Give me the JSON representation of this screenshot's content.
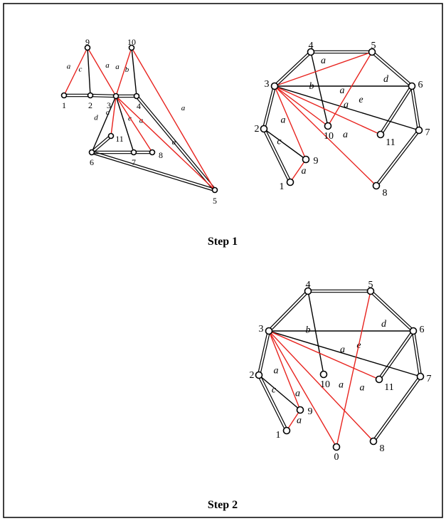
{
  "step_labels": {
    "step1": "Step 1",
    "step2": "Step 2"
  },
  "graphs": [
    {
      "id": "g1",
      "label_size": "small",
      "vertices": [
        {
          "id": "9",
          "lx": 0,
          "ly": -8
        },
        {
          "id": "10",
          "lx": 0,
          "ly": -8
        },
        {
          "id": "1",
          "lx": 0,
          "ly": 14
        },
        {
          "id": "2",
          "lx": 0,
          "ly": 14
        },
        {
          "id": "3",
          "lx": -10,
          "ly": 13
        },
        {
          "id": "4",
          "lx": 3,
          "ly": 14
        },
        {
          "id": "11",
          "lx": 12,
          "ly": 4
        },
        {
          "id": "6",
          "lx": 0,
          "ly": 14
        },
        {
          "id": "7",
          "lx": 0,
          "ly": 14
        },
        {
          "id": "8",
          "lx": 12,
          "ly": 4
        },
        {
          "id": "5",
          "lx": 0,
          "ly": 15
        }
      ],
      "edges": [
        {
          "from": "1",
          "to": "2",
          "style": "double",
          "label": ""
        },
        {
          "from": "2",
          "to": "3",
          "style": "double",
          "label": ""
        },
        {
          "from": "3",
          "to": "4",
          "style": "double",
          "label": ""
        },
        {
          "from": "4",
          "to": "5",
          "style": "double",
          "label": ""
        },
        {
          "from": "5",
          "to": "6",
          "style": "double",
          "label": ""
        },
        {
          "from": "6",
          "to": "11",
          "style": "double",
          "label": ""
        },
        {
          "from": "6",
          "to": "7",
          "style": "double",
          "label": ""
        },
        {
          "from": "7",
          "to": "8",
          "style": "double",
          "label": ""
        },
        {
          "from": "9",
          "to": "2",
          "style": "single",
          "label": "c"
        },
        {
          "from": "10",
          "to": "4",
          "style": "single",
          "label": "b"
        },
        {
          "from": "3",
          "to": "6",
          "style": "single",
          "label": "d"
        },
        {
          "from": "3",
          "to": "7",
          "style": "single",
          "label": "e"
        },
        {
          "from": "9",
          "to": "1",
          "style": "red",
          "label": "a"
        },
        {
          "from": "9",
          "to": "3",
          "style": "red",
          "label": "a"
        },
        {
          "from": "10",
          "to": "3",
          "style": "red",
          "label": "a"
        },
        {
          "from": "10",
          "to": "5",
          "style": "red",
          "label": "a"
        },
        {
          "from": "3",
          "to": "11",
          "style": "red",
          "label": "a"
        },
        {
          "from": "3",
          "to": "8",
          "style": "red",
          "label": "a"
        },
        {
          "from": "3",
          "to": "5",
          "style": "red",
          "label": "a"
        }
      ]
    },
    {
      "id": "g2",
      "label_size": "normal",
      "vertices": [
        {
          "id": "4",
          "lx": 0,
          "ly": -9
        },
        {
          "id": "5",
          "lx": 2,
          "ly": -9
        },
        {
          "id": "3",
          "lx": -11,
          "ly": -3
        },
        {
          "id": "6",
          "lx": 12,
          "ly": -2
        },
        {
          "id": "2",
          "lx": -10,
          "ly": 0
        },
        {
          "id": "7",
          "lx": 12,
          "ly": 3
        },
        {
          "id": "10",
          "lx": 1,
          "ly": 14
        },
        {
          "id": "11",
          "lx": 14,
          "ly": 11
        },
        {
          "id": "9",
          "lx": 14,
          "ly": 2
        },
        {
          "id": "1",
          "lx": -12,
          "ly": 6
        },
        {
          "id": "8",
          "lx": 12,
          "ly": 10
        }
      ],
      "edges": [
        {
          "from": "3",
          "to": "4",
          "style": "double",
          "label": ""
        },
        {
          "from": "4",
          "to": "5",
          "style": "double",
          "label": ""
        },
        {
          "from": "5",
          "to": "6",
          "style": "double",
          "label": ""
        },
        {
          "from": "6",
          "to": "7",
          "style": "double",
          "label": ""
        },
        {
          "from": "7",
          "to": "8",
          "style": "double",
          "label": ""
        },
        {
          "from": "6",
          "to": "11",
          "style": "double",
          "label": ""
        },
        {
          "from": "3",
          "to": "2",
          "style": "double",
          "label": ""
        },
        {
          "from": "2",
          "to": "1",
          "style": "double",
          "label": ""
        },
        {
          "from": "2",
          "to": "9",
          "style": "single",
          "label": "c"
        },
        {
          "from": "4",
          "to": "10",
          "style": "single",
          "label": "b"
        },
        {
          "from": "3",
          "to": "6",
          "style": "single",
          "label": "d"
        },
        {
          "from": "3",
          "to": "7",
          "style": "single",
          "label": "e"
        },
        {
          "from": "3",
          "to": "5",
          "style": "red",
          "label": "a"
        },
        {
          "from": "10",
          "to": "5",
          "style": "red",
          "label": "a"
        },
        {
          "from": "3",
          "to": "11",
          "style": "red",
          "label": "a"
        },
        {
          "from": "3",
          "to": "8",
          "style": "red",
          "label": "a"
        },
        {
          "from": "3",
          "to": "9",
          "style": "red",
          "label": "a"
        },
        {
          "from": "9",
          "to": "1",
          "style": "red",
          "label": "a"
        },
        {
          "from": "3",
          "to": "10",
          "style": "red",
          "label": ""
        }
      ]
    },
    {
      "id": "g3",
      "label_size": "normal",
      "vertices": [
        {
          "id": "4",
          "lx": 0,
          "ly": -9
        },
        {
          "id": "5",
          "lx": 0,
          "ly": -9
        },
        {
          "id": "3",
          "lx": -11,
          "ly": -3
        },
        {
          "id": "6",
          "lx": 12,
          "ly": -2
        },
        {
          "id": "2",
          "lx": -10,
          "ly": 0
        },
        {
          "id": "7",
          "lx": 12,
          "ly": 3
        },
        {
          "id": "10",
          "lx": 2,
          "ly": 14
        },
        {
          "id": "11",
          "lx": 14,
          "ly": 11
        },
        {
          "id": "9",
          "lx": 14,
          "ly": 2
        },
        {
          "id": "1",
          "lx": -12,
          "ly": 6
        },
        {
          "id": "8",
          "lx": 12,
          "ly": 10
        }
      ],
      "edges": [
        {
          "from": "3",
          "to": "4",
          "style": "double",
          "label": ""
        },
        {
          "from": "4",
          "to": "5",
          "style": "double",
          "label": ""
        },
        {
          "from": "5",
          "to": "6",
          "style": "double",
          "label": ""
        },
        {
          "from": "6",
          "to": "7",
          "style": "double",
          "label": ""
        },
        {
          "from": "7",
          "to": "8",
          "style": "double",
          "label": ""
        },
        {
          "from": "6",
          "to": "11",
          "style": "double",
          "label": ""
        },
        {
          "from": "3",
          "to": "2",
          "style": "double",
          "label": ""
        },
        {
          "from": "2",
          "to": "1",
          "style": "double",
          "label": ""
        },
        {
          "from": "2",
          "to": "9",
          "style": "single",
          "label": "c"
        },
        {
          "from": "4",
          "to": "10",
          "style": "single",
          "label": "b"
        },
        {
          "from": "3",
          "to": "6",
          "style": "single",
          "label": "d"
        },
        {
          "from": "3",
          "to": "7",
          "style": "single",
          "label": "e"
        },
        {
          "from": "3",
          "to": "11",
          "style": "red",
          "label": "a"
        },
        {
          "from": "3",
          "to": "8",
          "style": "red",
          "label": "a"
        },
        {
          "from": "3",
          "to": "9",
          "style": "red",
          "label": "a"
        },
        {
          "from": "9",
          "to": "1",
          "style": "red",
          "label": "a"
        },
        {
          "from": "3",
          "to": "0",
          "style": "red",
          "label": "a"
        },
        {
          "from": "0",
          "to": "5",
          "style": "red",
          "label": "a"
        }
      ]
    }
  ],
  "extra_vertices": [
    {
      "id": "0",
      "graph": "g3",
      "lx": 0,
      "ly": 14
    }
  ],
  "colors": {
    "red_edge": "#e8241f",
    "black_edge": "#000000"
  }
}
